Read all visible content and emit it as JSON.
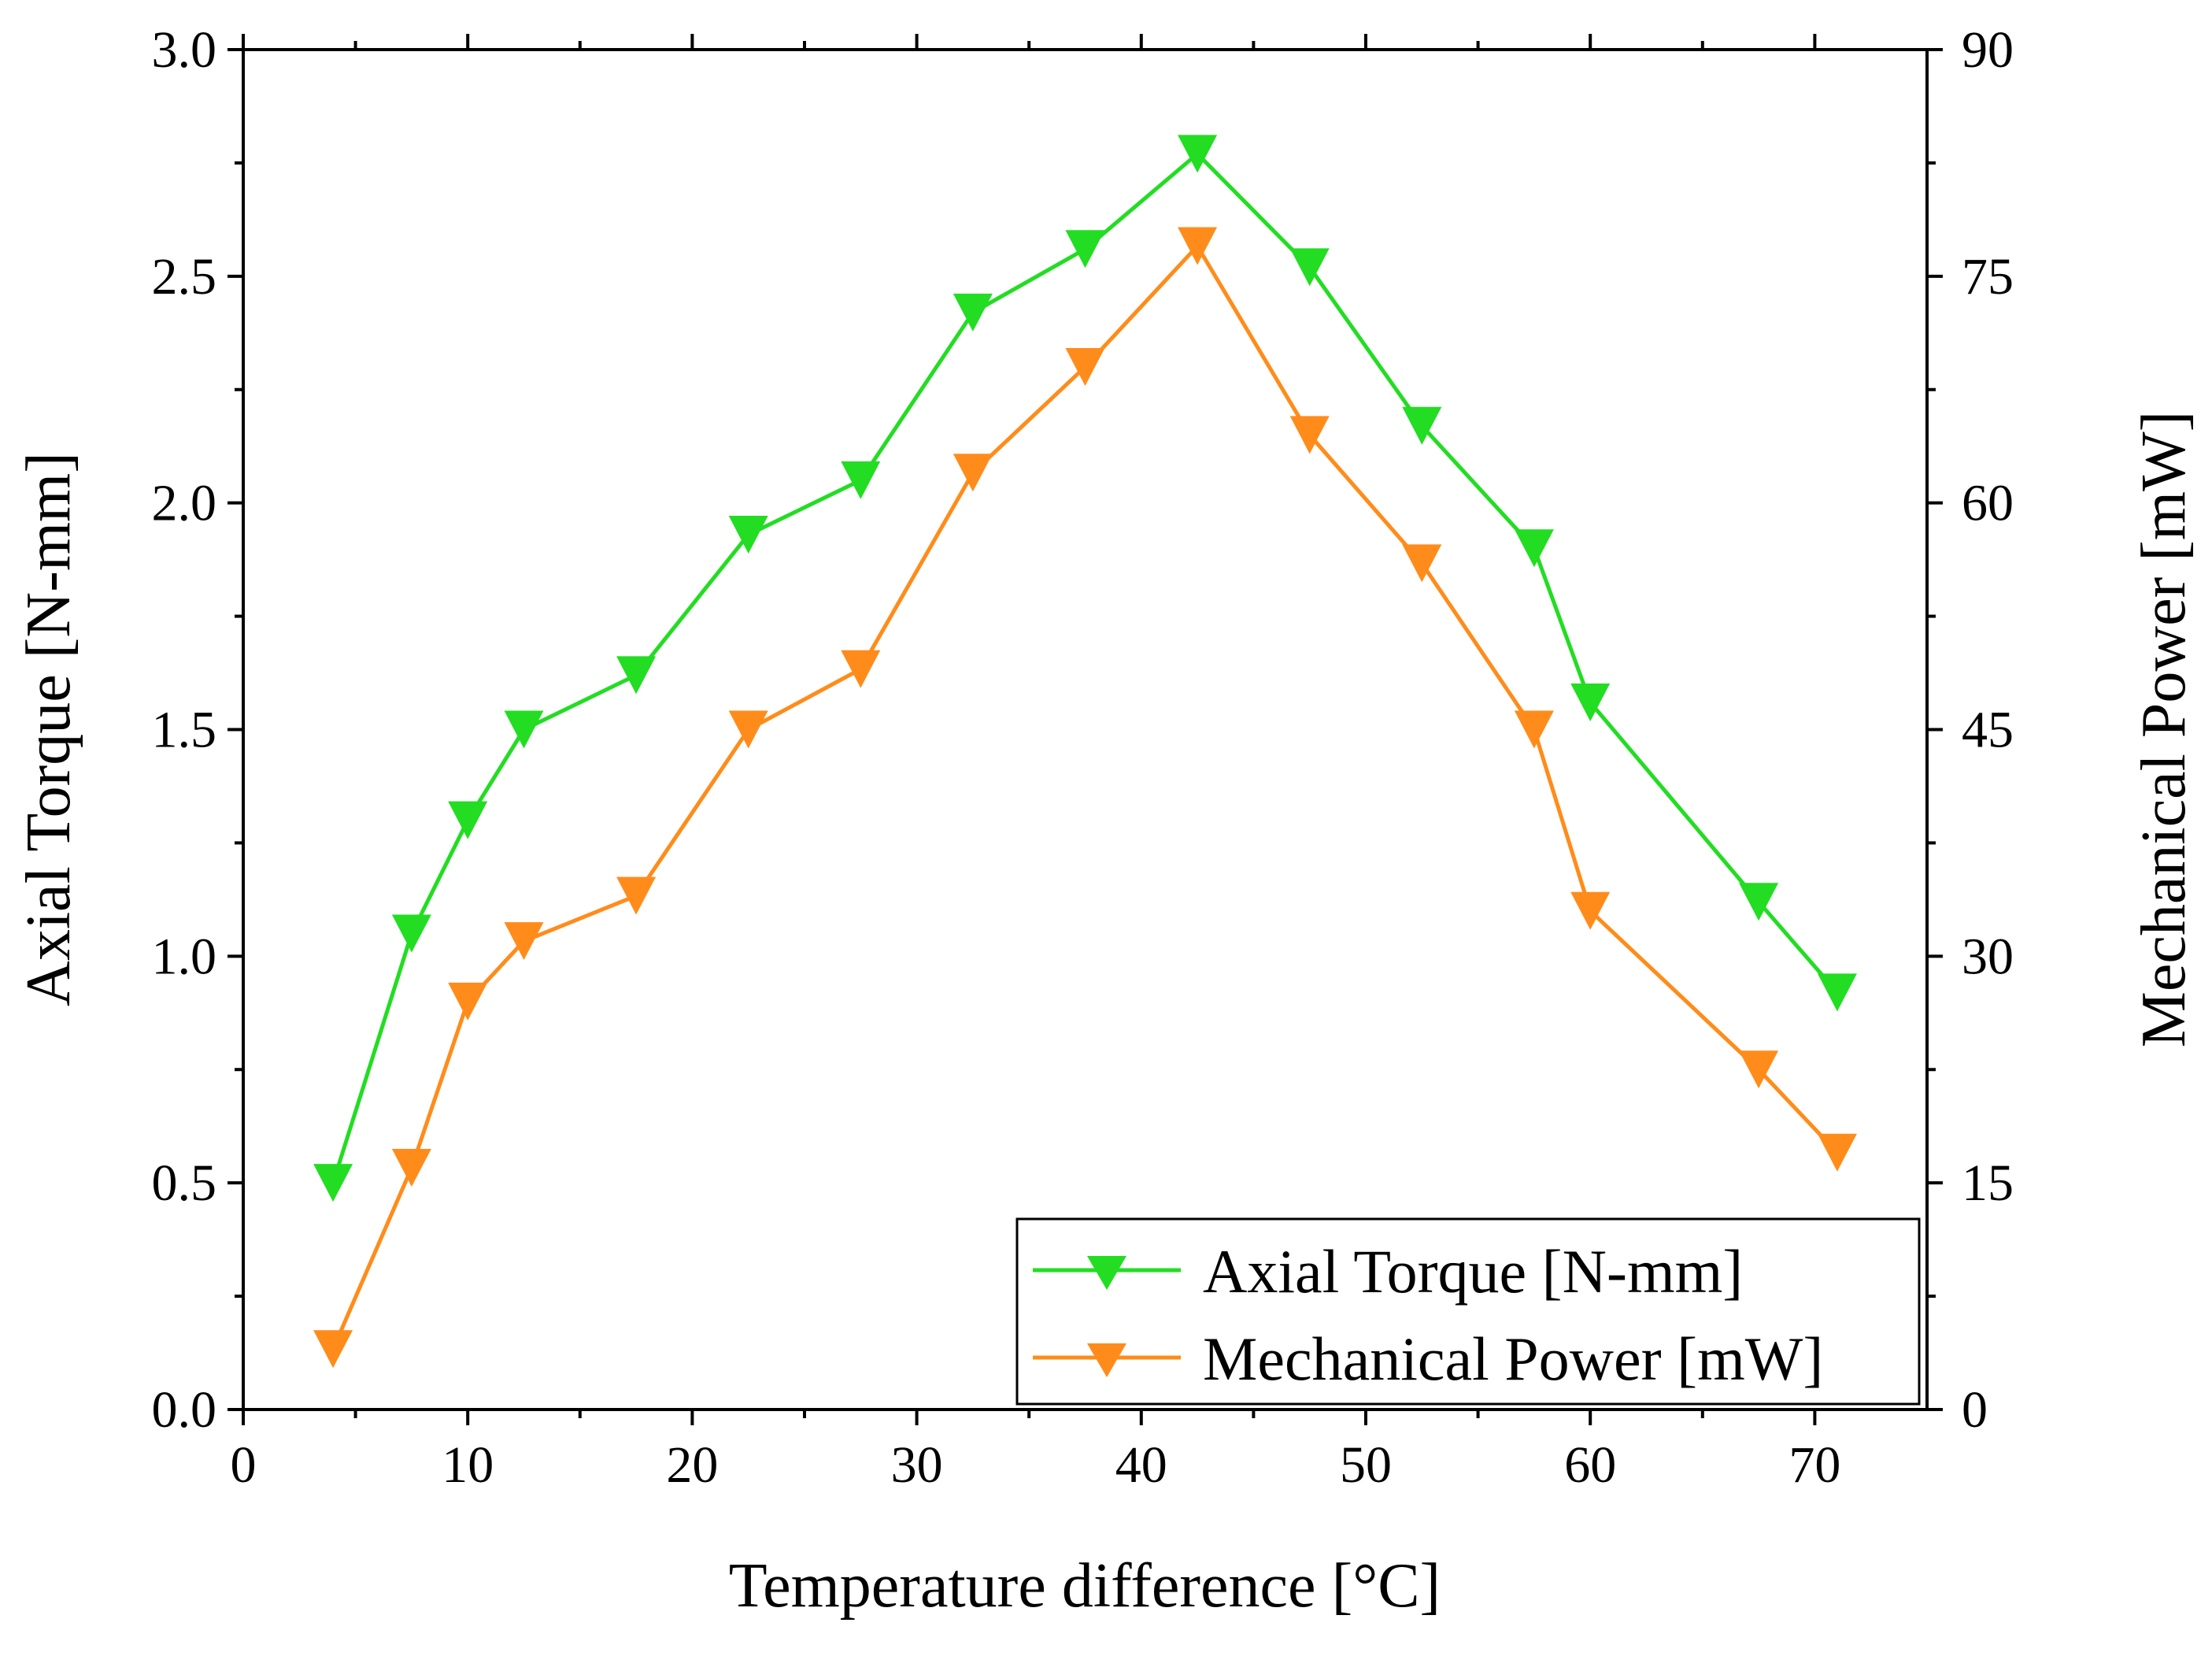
{
  "chart_data": {
    "type": "line",
    "title": "",
    "xlabel": "Temperature difference [°C]",
    "ylabel": "Axial Torque [N-mm]",
    "y2label": "Mechanical Power [mW]",
    "xlim": [
      0,
      75
    ],
    "ylim": [
      0,
      3.0
    ],
    "y2lim": [
      0,
      90
    ],
    "xticks": [
      0,
      10,
      20,
      30,
      40,
      50,
      60,
      70
    ],
    "yticks": [
      "0.0",
      "0.5",
      "1.0",
      "1.5",
      "2.0",
      "2.5",
      "3.0"
    ],
    "y2ticks": [
      "0",
      "15",
      "30",
      "45",
      "60",
      "75",
      "90"
    ],
    "grid": false,
    "legend_position": "bottom-right",
    "series": [
      {
        "name": "Axial Torque [N-mm]",
        "axis": "left",
        "color": "#22dd22",
        "marker": "triangle-down",
        "x": [
          4,
          7.5,
          10,
          12.5,
          17.5,
          22.5,
          27.5,
          32.5,
          37.5,
          42.5,
          47.5,
          52.5,
          57.5,
          60,
          67.5,
          71
        ],
        "y": [
          0.5,
          1.05,
          1.3,
          1.5,
          1.62,
          1.93,
          2.05,
          2.42,
          2.56,
          2.77,
          2.52,
          2.17,
          1.9,
          1.56,
          1.12,
          0.92
        ]
      },
      {
        "name": "Mechanical Power [mW]",
        "axis": "right",
        "color": "#ff8c1a",
        "marker": "triangle-down",
        "x": [
          4,
          7.5,
          10,
          12.5,
          17.5,
          22.5,
          27.5,
          32.5,
          37.5,
          42.5,
          47.5,
          52.5,
          57.5,
          60,
          67.5,
          71
        ],
        "y": [
          4,
          16,
          27,
          31,
          34,
          45,
          49,
          62,
          69,
          77,
          64.5,
          56,
          45,
          33,
          22.5,
          17
        ]
      }
    ]
  }
}
